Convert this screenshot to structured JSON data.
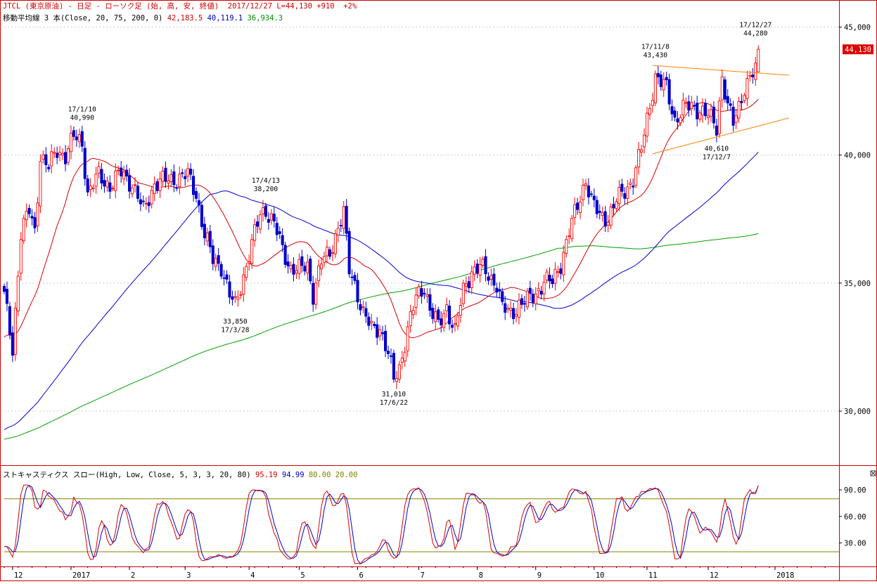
{
  "header": {
    "symbol": "JTCL",
    "name": "(東京原油)",
    "timeframe": "- 日足 -",
    "chart_style": "ローソク足",
    "ohlc_label": "(始, 高, 安, 終値)",
    "date": "2017/12/27",
    "last": "L=44,130",
    "change": "+910",
    "change_pct": "+2%",
    "ma_label": "移動平均線 3 本(Close, 20, 75, 200, 0)",
    "ma20_value": "42,183.5",
    "ma75_value": "40,119.1",
    "ma200_value": "36,934.3"
  },
  "stoch_header": {
    "label": "ストキャスティクス スロー(High, Low, Close, 5, 3, 3, 20, 80)",
    "k_value": "95.19",
    "d_value": "94.99",
    "upper": "80.00",
    "lower": "20.00"
  },
  "price_badge": "44,130",
  "colors": {
    "frame": "#cc0000",
    "candle_up": "#ff0000",
    "candle_down": "#0000cc",
    "ma20": "#dd0000",
    "ma75": "#0000cc",
    "ma200": "#00a000",
    "trendline": "#ff8000",
    "stoch_k": "#dd0000",
    "stoch_d": "#0000cc",
    "stoch_band": "#808000",
    "grid": "#cccccc"
  },
  "chart_data": [
    {
      "type": "candlestick",
      "title": "JTCL (東京原油) 日足",
      "ylim": [
        28000,
        46500
      ],
      "y_ticks": [
        30000,
        35000,
        40000,
        45000
      ],
      "y_tick_labels": [
        "30,000",
        "35,000",
        "40,000",
        "45,000"
      ],
      "x_ticks": [
        {
          "label": "12",
          "x": 3.0
        },
        {
          "label": "2017",
          "x": 24.0
        },
        {
          "label": "2",
          "x": 45.0
        },
        {
          "label": "3",
          "x": 65.0
        },
        {
          "label": "4",
          "x": 88.0
        },
        {
          "label": "5",
          "x": 106.0
        },
        {
          "label": "6",
          "x": 127.0
        },
        {
          "label": "7",
          "x": 149.0
        },
        {
          "label": "8",
          "x": 170.0
        },
        {
          "label": "9",
          "x": 191.0
        },
        {
          "label": "10",
          "x": 212.0
        },
        {
          "label": "11",
          "x": 231.0
        },
        {
          "label": "12",
          "x": 253.0
        },
        {
          "label": "2018",
          "x": 277.0
        }
      ],
      "x_range": [
        0,
        300
      ],
      "annotations": [
        {
          "date": "17/1/10",
          "value": "40,990",
          "x": 28,
          "price": 40990,
          "above": true
        },
        {
          "date": "17/3/28",
          "value": "33,850",
          "x": 83,
          "price": 33850,
          "above": false
        },
        {
          "date": "17/4/13",
          "value": "38,200",
          "x": 94,
          "price": 38200,
          "above": true
        },
        {
          "date": "17/6/22",
          "value": "31,010",
          "x": 140,
          "price": 31010,
          "above": false
        },
        {
          "date": "17/11/8",
          "value": "43,430",
          "x": 234,
          "price": 43430,
          "above": true
        },
        {
          "date": "17/12/7",
          "value": "40,610",
          "x": 256,
          "price": 40610,
          "above": false
        },
        {
          "date": "17/12/27",
          "value": "44,280",
          "x": 270,
          "price": 44280,
          "above": true
        }
      ],
      "trendlines": [
        {
          "x": [
            233,
            282
          ],
          "y": [
            43500,
            43120
          ]
        },
        {
          "x": [
            233,
            282
          ],
          "y": [
            40050,
            41450
          ]
        }
      ],
      "anchors": [
        {
          "x": 0,
          "p": 34500
        },
        {
          "x": 3,
          "p": 32400
        },
        {
          "x": 6,
          "p": 37000
        },
        {
          "x": 9,
          "p": 37800
        },
        {
          "x": 11,
          "p": 37000
        },
        {
          "x": 13,
          "p": 40000
        },
        {
          "x": 16,
          "p": 39500
        },
        {
          "x": 19,
          "p": 40200
        },
        {
          "x": 22,
          "p": 40000
        },
        {
          "x": 25,
          "p": 40700
        },
        {
          "x": 28,
          "p": 40500
        },
        {
          "x": 30,
          "p": 38500
        },
        {
          "x": 34,
          "p": 39200
        },
        {
          "x": 38,
          "p": 38800
        },
        {
          "x": 42,
          "p": 39300
        },
        {
          "x": 46,
          "p": 38900
        },
        {
          "x": 50,
          "p": 37800
        },
        {
          "x": 54,
          "p": 38900
        },
        {
          "x": 58,
          "p": 39000
        },
        {
          "x": 62,
          "p": 39100
        },
        {
          "x": 66,
          "p": 39200
        },
        {
          "x": 69,
          "p": 38500
        },
        {
          "x": 72,
          "p": 36900
        },
        {
          "x": 75,
          "p": 35900
        },
        {
          "x": 78,
          "p": 35700
        },
        {
          "x": 81,
          "p": 34500
        },
        {
          "x": 83,
          "p": 34100
        },
        {
          "x": 86,
          "p": 35300
        },
        {
          "x": 89,
          "p": 36500
        },
        {
          "x": 92,
          "p": 37700
        },
        {
          "x": 94,
          "p": 37900
        },
        {
          "x": 97,
          "p": 37300
        },
        {
          "x": 100,
          "p": 36300
        },
        {
          "x": 103,
          "p": 35600
        },
        {
          "x": 106,
          "p": 35500
        },
        {
          "x": 109,
          "p": 35700
        },
        {
          "x": 111,
          "p": 34600
        },
        {
          "x": 114,
          "p": 35800
        },
        {
          "x": 117,
          "p": 36200
        },
        {
          "x": 120,
          "p": 37200
        },
        {
          "x": 122,
          "p": 37700
        },
        {
          "x": 124,
          "p": 35500
        },
        {
          "x": 126,
          "p": 35000
        },
        {
          "x": 129,
          "p": 33800
        },
        {
          "x": 132,
          "p": 33200
        },
        {
          "x": 135,
          "p": 33300
        },
        {
          "x": 138,
          "p": 32200
        },
        {
          "x": 140,
          "p": 31200
        },
        {
          "x": 142,
          "p": 31700
        },
        {
          "x": 145,
          "p": 33200
        },
        {
          "x": 148,
          "p": 34400
        },
        {
          "x": 151,
          "p": 34900
        },
        {
          "x": 153,
          "p": 34000
        },
        {
          "x": 156,
          "p": 33300
        },
        {
          "x": 159,
          "p": 34100
        },
        {
          "x": 162,
          "p": 33100
        },
        {
          "x": 165,
          "p": 34700
        },
        {
          "x": 168,
          "p": 35500
        },
        {
          "x": 171,
          "p": 35600
        },
        {
          "x": 174,
          "p": 35300
        },
        {
          "x": 177,
          "p": 35000
        },
        {
          "x": 179,
          "p": 34000
        },
        {
          "x": 182,
          "p": 33800
        },
        {
          "x": 185,
          "p": 34200
        },
        {
          "x": 188,
          "p": 34300
        },
        {
          "x": 191,
          "p": 34600
        },
        {
          "x": 194,
          "p": 35100
        },
        {
          "x": 197,
          "p": 35000
        },
        {
          "x": 200,
          "p": 35800
        },
        {
          "x": 203,
          "p": 37000
        },
        {
          "x": 206,
          "p": 38000
        },
        {
          "x": 209,
          "p": 39100
        },
        {
          "x": 211,
          "p": 38200
        },
        {
          "x": 214,
          "p": 37600
        },
        {
          "x": 217,
          "p": 37600
        },
        {
          "x": 220,
          "p": 38200
        },
        {
          "x": 223,
          "p": 38600
        },
        {
          "x": 226,
          "p": 39100
        },
        {
          "x": 229,
          "p": 40200
        },
        {
          "x": 232,
          "p": 42000
        },
        {
          "x": 234,
          "p": 43100
        },
        {
          "x": 236,
          "p": 42800
        },
        {
          "x": 238,
          "p": 42600
        },
        {
          "x": 241,
          "p": 41400
        },
        {
          "x": 244,
          "p": 41800
        },
        {
          "x": 247,
          "p": 41900
        },
        {
          "x": 250,
          "p": 41800
        },
        {
          "x": 253,
          "p": 41500
        },
        {
          "x": 256,
          "p": 41100
        },
        {
          "x": 258,
          "p": 43100
        },
        {
          "x": 260,
          "p": 41900
        },
        {
          "x": 262,
          "p": 41200
        },
        {
          "x": 264,
          "p": 41900
        },
        {
          "x": 266,
          "p": 42700
        },
        {
          "x": 268,
          "p": 43000
        },
        {
          "x": 270,
          "p": 43300
        },
        {
          "x": 271,
          "p": 44130
        }
      ],
      "last_index": 271,
      "series": [
        {
          "name": "Close 20",
          "last": 42183.5
        },
        {
          "name": "Close 75",
          "last": 40119.1
        },
        {
          "name": "Close 200",
          "last": 36934.3
        }
      ]
    },
    {
      "type": "line",
      "title": "ストキャスティクス スロー",
      "ylim": [
        5,
        110
      ],
      "y_ticks": [
        30,
        60,
        90
      ],
      "y_tick_labels": [
        "30.00",
        "60.00",
        "90.00"
      ],
      "bands": [
        20,
        80
      ],
      "series": [
        {
          "name": "%K",
          "last": 95.19
        },
        {
          "name": "%D",
          "last": 94.99
        }
      ]
    }
  ]
}
